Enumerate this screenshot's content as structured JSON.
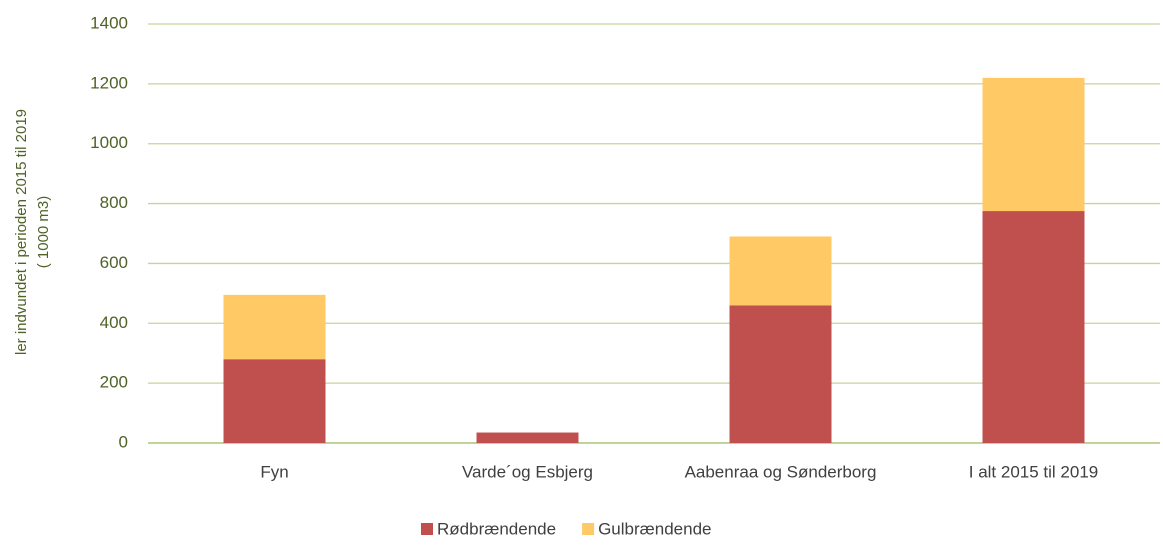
{
  "chart_data": {
    "type": "stacked_bar",
    "ylabel": [
      "ler indvundet i perioden 2015 til 2019",
      "( 1000 m3)"
    ],
    "categories": [
      "Fyn",
      "Varde´og Esbjerg",
      "Aabenraa og Sønderborg",
      "I alt 2015 til 2019"
    ],
    "series": [
      {
        "name": "Rødbrændende",
        "color": "#c0504d",
        "values": [
          280,
          35,
          460,
          775
        ]
      },
      {
        "name": "Gulbrændende",
        "color": "#ffc966",
        "values": [
          215,
          0,
          230,
          445
        ]
      }
    ],
    "ylim": [
      0,
      1400
    ],
    "yticks": [
      0,
      200,
      400,
      600,
      800,
      1000,
      1200,
      1400
    ],
    "grid": true,
    "legend": "bottom"
  }
}
